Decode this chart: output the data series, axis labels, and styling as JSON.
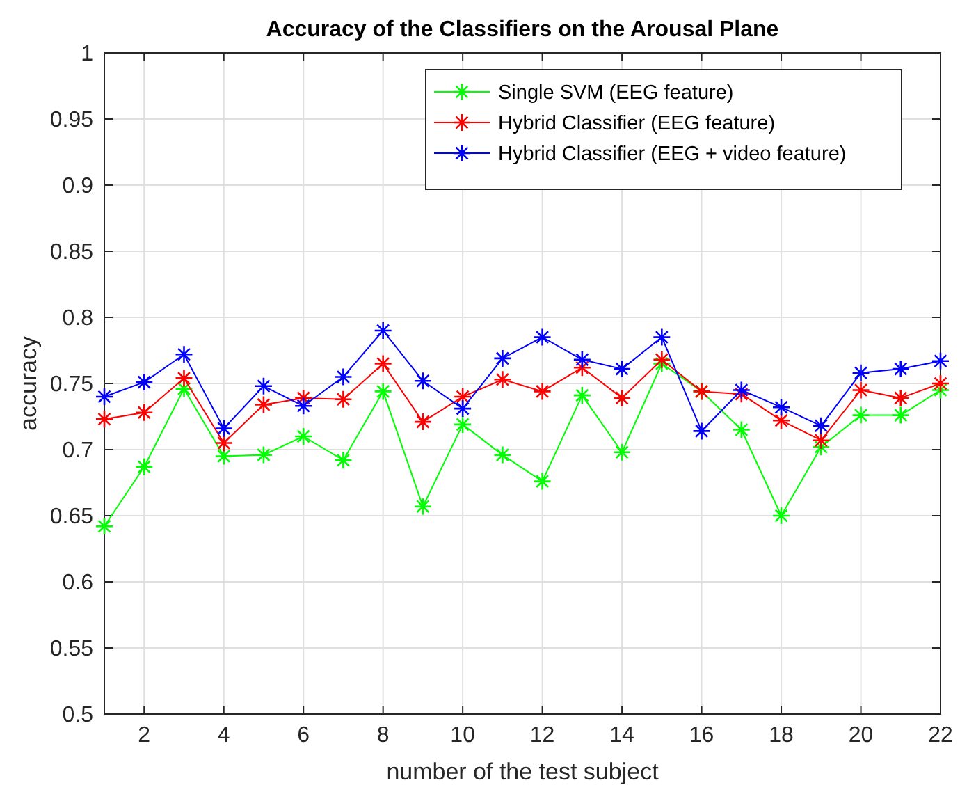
{
  "chart_data": {
    "type": "line",
    "title": "Accuracy of the Classifiers on the Arousal Plane",
    "xlabel": "number of the test subject",
    "ylabel": "accuracy",
    "x": [
      1,
      2,
      3,
      4,
      5,
      6,
      7,
      8,
      9,
      10,
      11,
      12,
      13,
      14,
      15,
      16,
      17,
      18,
      19,
      20,
      21,
      22
    ],
    "xlim": [
      1,
      22
    ],
    "xticks": [
      2,
      4,
      6,
      8,
      10,
      12,
      14,
      16,
      18,
      20,
      22
    ],
    "ylim": [
      0.5,
      1
    ],
    "yticks": [
      0.5,
      0.55,
      0.6,
      0.65,
      0.7,
      0.75,
      0.8,
      0.85,
      0.9,
      0.95,
      1
    ],
    "grid": true,
    "legend": "top right",
    "marker": "cross",
    "line_style": "solid",
    "series": [
      {
        "name": "Single SVM (EEG feature)",
        "color": "#00ff00",
        "values": [
          0.642,
          0.687,
          0.746,
          0.695,
          0.696,
          0.71,
          0.692,
          0.744,
          0.657,
          0.719,
          0.696,
          0.676,
          0.741,
          0.698,
          0.765,
          0.744,
          0.715,
          0.65,
          0.702,
          0.726,
          0.726,
          0.745
        ]
      },
      {
        "name": "Hybrid Classifier (EEG feature)",
        "color": "#ff0000",
        "values": [
          0.723,
          0.728,
          0.754,
          0.705,
          0.734,
          0.739,
          0.738,
          0.765,
          0.721,
          0.74,
          0.753,
          0.744,
          0.762,
          0.739,
          0.768,
          0.744,
          0.742,
          0.722,
          0.707,
          0.745,
          0.739,
          0.75
        ]
      },
      {
        "name": "Hybrid Classifier (EEG + video feature)",
        "color": "#0000ff",
        "values": [
          0.74,
          0.751,
          0.772,
          0.716,
          0.748,
          0.733,
          0.755,
          0.79,
          0.752,
          0.731,
          0.769,
          0.785,
          0.768,
          0.761,
          0.785,
          0.714,
          0.745,
          0.732,
          0.718,
          0.758,
          0.761,
          0.767
        ]
      }
    ]
  }
}
